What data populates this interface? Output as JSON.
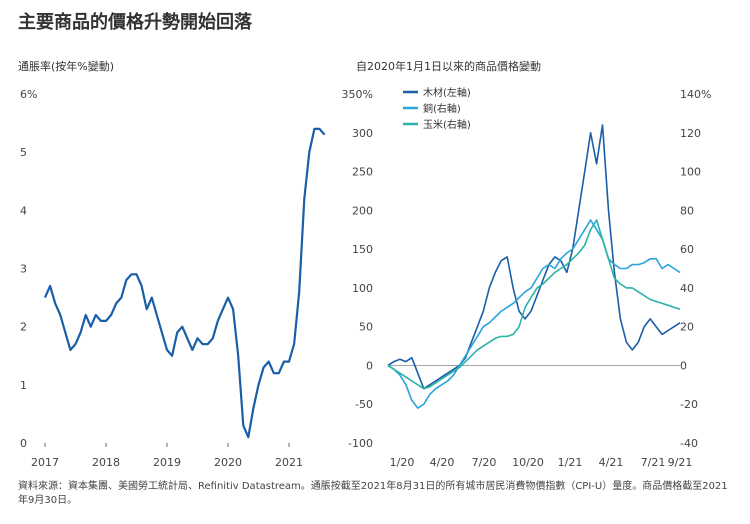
{
  "title": "主要商品的價格升勢開始回落",
  "left_subtitle": "通脹率(按年%變動)",
  "right_subtitle": "自2020年1月1日以來的商品價格變動",
  "source": "資料來源：資本集團、美國勞工統計局、Refinitiv Datastream。通脹按截至2021年8月31日的所有城市居民消費物價指數（CPI-U）量度。商品價格截至2021年9月30日。",
  "colors": {
    "lumber": "#1a5ea8",
    "copper": "#2aa4dc",
    "corn": "#2ab3a6",
    "inflation": "#1a5ea8"
  },
  "chart_data": [
    {
      "type": "line",
      "title": "通脹率(按年%變動)",
      "xticks": [
        "2017",
        "2018",
        "2019",
        "2020",
        "2021"
      ],
      "yticks": [
        "6%",
        "5",
        "4",
        "3",
        "2",
        "1",
        "0"
      ],
      "ylim": [
        0,
        6
      ],
      "x_start_year": 2017,
      "series": [
        {
          "values": [
            2.5,
            2.7,
            2.4,
            2.2,
            1.9,
            1.6,
            1.7,
            1.9,
            2.2,
            2.0,
            2.2,
            2.1,
            2.1,
            2.2,
            2.4,
            2.5,
            2.8,
            2.9,
            2.9,
            2.7,
            2.3,
            2.5,
            2.2,
            1.9,
            1.6,
            1.5,
            1.9,
            2.0,
            1.8,
            1.6,
            1.8,
            1.7,
            1.7,
            1.8,
            2.1,
            2.3,
            2.5,
            2.3,
            1.5,
            0.3,
            0.1,
            0.6,
            1.0,
            1.3,
            1.4,
            1.2,
            1.2,
            1.4,
            1.4,
            1.7,
            2.6,
            4.2,
            5.0,
            5.4,
            5.4,
            5.3
          ]
        }
      ]
    },
    {
      "type": "line",
      "title": "自2020年1月1日以來的商品價格變動",
      "xticks": [
        "1/20",
        "4/20",
        "7/20",
        "10/20",
        "1/21",
        "4/21",
        "7/21",
        "9/21"
      ],
      "yticks_left": [
        "350%",
        "300",
        "250",
        "200",
        "150",
        "100",
        "50",
        "0",
        "-50",
        "-100"
      ],
      "yticks_right": [
        "140%",
        "120",
        "100",
        "80",
        "60",
        "40",
        "20",
        "0",
        "-20",
        "-40"
      ],
      "ylim_left": [
        -100,
        350
      ],
      "ylim_right": [
        -40,
        140
      ],
      "legend": [
        "木材(左軸)",
        "銅(右軸)",
        "玉米(右軸)"
      ],
      "series": [
        {
          "name": "木材(左軸)",
          "axis": "left",
          "values": [
            0,
            5,
            8,
            5,
            10,
            -10,
            -30,
            -25,
            -20,
            -15,
            -10,
            -5,
            0,
            10,
            30,
            50,
            70,
            100,
            120,
            135,
            140,
            100,
            70,
            60,
            70,
            90,
            110,
            130,
            140,
            135,
            120,
            150,
            200,
            250,
            300,
            260,
            310,
            200,
            120,
            60,
            30,
            20,
            30,
            50,
            60,
            50,
            40,
            45,
            50,
            55
          ]
        },
        {
          "name": "銅(右軸)",
          "axis": "right",
          "values": [
            0,
            -2,
            -5,
            -10,
            -18,
            -22,
            -20,
            -15,
            -12,
            -10,
            -8,
            -5,
            0,
            5,
            10,
            15,
            20,
            22,
            25,
            28,
            30,
            32,
            35,
            38,
            40,
            45,
            50,
            52,
            50,
            55,
            58,
            60,
            65,
            70,
            75,
            70,
            65,
            55,
            52,
            50,
            50,
            52,
            52,
            53,
            55,
            55,
            50,
            52,
            50,
            48
          ]
        },
        {
          "name": "玉米(右軸)",
          "axis": "right",
          "values": [
            0,
            -2,
            -4,
            -6,
            -8,
            -10,
            -12,
            -11,
            -9,
            -7,
            -5,
            -3,
            -1,
            2,
            5,
            8,
            10,
            12,
            14,
            15,
            15,
            16,
            20,
            30,
            35,
            40,
            42,
            45,
            48,
            50,
            52,
            55,
            58,
            62,
            70,
            75,
            65,
            55,
            45,
            42,
            40,
            40,
            38,
            36,
            34,
            33,
            32,
            31,
            30,
            29
          ]
        }
      ]
    }
  ]
}
